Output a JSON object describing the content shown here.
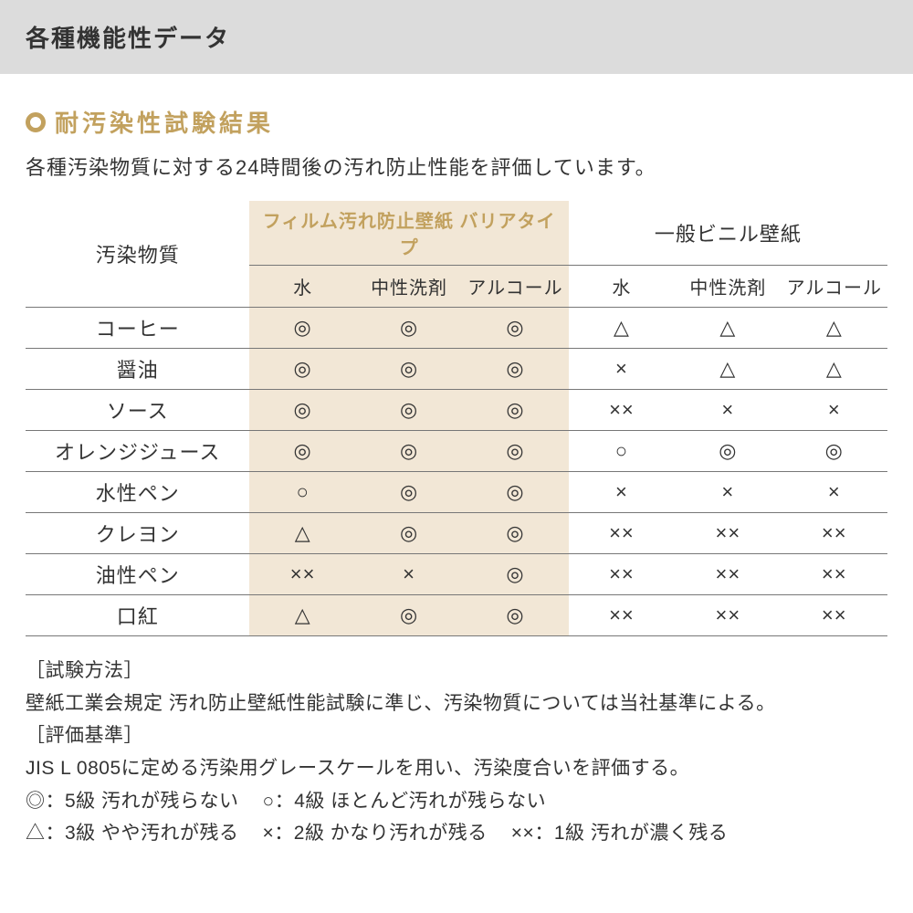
{
  "header": {
    "title": "各種機能性データ"
  },
  "section": {
    "title": "耐汚染性試験結果",
    "lead": "各種汚染物質に対する24時間後の汚れ防止性能を評価しています。"
  },
  "table": {
    "row_header_label": "汚染物質",
    "group1_label": "フィルム汚れ防止壁紙 バリアタイプ",
    "group2_label": "一般ビニル壁紙",
    "subheads": [
      "水",
      "中性洗剤",
      "アルコール",
      "水",
      "中性洗剤",
      "アルコール"
    ],
    "rows": [
      {
        "label": "コーヒー",
        "cells": [
          "◎",
          "◎",
          "◎",
          "△",
          "△",
          "△"
        ]
      },
      {
        "label": "醤油",
        "cells": [
          "◎",
          "◎",
          "◎",
          "×",
          "△",
          "△"
        ]
      },
      {
        "label": "ソース",
        "cells": [
          "◎",
          "◎",
          "◎",
          "××",
          "×",
          "×"
        ]
      },
      {
        "label": "オレンジジュース",
        "cells": [
          "◎",
          "◎",
          "◎",
          "○",
          "◎",
          "◎"
        ]
      },
      {
        "label": "水性ペン",
        "cells": [
          "○",
          "◎",
          "◎",
          "×",
          "×",
          "×"
        ]
      },
      {
        "label": "クレヨン",
        "cells": [
          "△",
          "◎",
          "◎",
          "××",
          "××",
          "××"
        ]
      },
      {
        "label": "油性ペン",
        "cells": [
          "××",
          "×",
          "◎",
          "××",
          "××",
          "××"
        ]
      },
      {
        "label": "口紅",
        "cells": [
          "△",
          "◎",
          "◎",
          "××",
          "××",
          "××"
        ]
      }
    ]
  },
  "notes": {
    "method_head": "［試験方法］",
    "method_body": "壁紙工業会規定 汚れ防止壁紙性能試験に準じ、汚染物質については当社基準による。",
    "criteria_head": "［評価基準］",
    "criteria_body": "JIS L 0805に定める汚染用グレースケールを用い、汚染度合いを評価する。",
    "legend1a": "◎：5級 汚れが残らない",
    "legend1b": "○：4級 ほとんど汚れが残らない",
    "legend2a": "△：3級 やや汚れが残る",
    "legend2b": "×：2級 かなり汚れが残る",
    "legend2c": "××：1級 汚れが濃く残る"
  },
  "style": {
    "header_bg": "#dcdcdc",
    "accent": "#c2a15e",
    "film_bg": "#f2e7d6",
    "border": "#777777",
    "text": "#333333"
  }
}
